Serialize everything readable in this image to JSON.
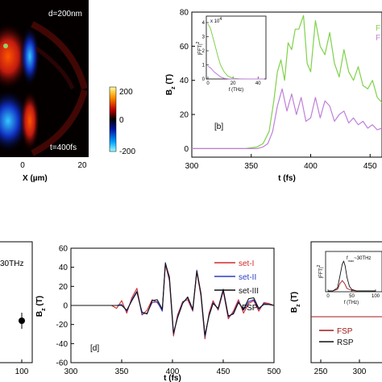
{
  "colors": {
    "green": "#7fd24a",
    "violet": "#bf7fd9",
    "red": "#d42a2a",
    "blue": "#2b3fc4",
    "black": "#111111",
    "darkred": "#a01818"
  },
  "chart_data": [
    {
      "id": "a",
      "type": "heatmap",
      "annotation_top": "d=200nm",
      "annotation_bottom": "t=400fs",
      "xlabel": "X (µm)",
      "xticks": [
        "0",
        "20"
      ],
      "colorbar": {
        "ticks": [
          "200",
          "0",
          "-200"
        ],
        "range": [
          -200,
          200
        ]
      }
    },
    {
      "id": "b",
      "type": "line",
      "ylabel": "B",
      "ylabel_sub": "z",
      "ylabel_unit": " (T)",
      "xlabel": "t (fs)",
      "xlim": [
        300,
        460
      ],
      "ylim": [
        -5,
        80
      ],
      "xticks": [
        300,
        350,
        400,
        450
      ],
      "yticks": [
        0,
        20,
        40,
        60,
        80
      ],
      "panel_label": "[b]",
      "legend_partial": [
        "F",
        "F"
      ],
      "series": [
        {
          "color_key": "green",
          "x": [
            300,
            330,
            345,
            350,
            355,
            360,
            365,
            369,
            372,
            375,
            378,
            381,
            384,
            387,
            390,
            394,
            397,
            400,
            404,
            408,
            412,
            416,
            420,
            424,
            428,
            432,
            436,
            440,
            444,
            448,
            452,
            456,
            460
          ],
          "y": [
            0,
            0,
            0,
            0.5,
            1,
            3,
            10,
            28,
            45,
            52,
            40,
            62,
            58,
            70,
            70,
            78,
            50,
            45,
            75,
            60,
            55,
            68,
            50,
            42,
            58,
            45,
            40,
            48,
            37,
            35,
            40,
            30,
            27
          ]
        },
        {
          "color_key": "violet",
          "x": [
            300,
            340,
            350,
            355,
            360,
            364,
            368,
            372,
            376,
            380,
            384,
            388,
            392,
            396,
            400,
            404,
            408,
            412,
            416,
            420,
            424,
            428,
            432,
            436,
            440,
            444,
            448,
            452,
            456,
            460
          ],
          "y": [
            0,
            0,
            0,
            0,
            1,
            3,
            10,
            25,
            35,
            22,
            32,
            20,
            30,
            16,
            18,
            30,
            18,
            28,
            25,
            16,
            20,
            22,
            15,
            18,
            14,
            16,
            12,
            14,
            11,
            12
          ]
        }
      ],
      "inset": {
        "ylabel": "|FFT|",
        "ylabel_sup": "2",
        "xlabel": "f (THz)",
        "xlim": [
          0,
          45
        ],
        "ylim": [
          0,
          4
        ],
        "xticks": [
          0,
          20,
          40
        ],
        "yticks": [
          0,
          1,
          2,
          3,
          4
        ],
        "scale_label": "x 10",
        "scale_exp": "4",
        "series": [
          {
            "color_key": "green",
            "x": [
              0,
              2,
              5,
              8,
              10,
              13,
              16,
              20,
              25,
              30,
              45
            ],
            "y": [
              3.9,
              3.6,
              2.6,
              1.6,
              1.0,
              0.5,
              0.2,
              0.05,
              0.02,
              0,
              0
            ]
          },
          {
            "color_key": "violet",
            "x": [
              0,
              2,
              5,
              8,
              10,
              13,
              16,
              20,
              25,
              45
            ],
            "y": [
              0.9,
              0.8,
              0.5,
              0.3,
              0.15,
              0.05,
              0.02,
              0,
              0,
              0
            ]
          }
        ]
      }
    },
    {
      "id": "c",
      "type": "scatter",
      "annotation": "30THz",
      "xticks": [
        "100"
      ],
      "points": [
        {
          "x": 100,
          "y": -20
        }
      ]
    },
    {
      "id": "d",
      "type": "line",
      "ylabel": "B",
      "ylabel_sub": "z",
      "ylabel_unit": " (T)",
      "xlabel": "t (fs)",
      "xlim": [
        300,
        500
      ],
      "ylim": [
        -60,
        60
      ],
      "xticks": [
        300,
        350,
        400,
        450,
        500
      ],
      "yticks": [
        -60,
        -40,
        -20,
        0,
        20,
        40,
        60
      ],
      "panel_label": "[d]",
      "annotation": "FSP",
      "legend": [
        "set-I",
        "set-II",
        "set-III"
      ],
      "series": [
        {
          "name": "set-I",
          "color_key": "red",
          "x": [
            300,
            330,
            340,
            345,
            350,
            355,
            360,
            365,
            370,
            375,
            380,
            385,
            390,
            393,
            397,
            401,
            405,
            410,
            415,
            420,
            424,
            428,
            432,
            436,
            440,
            445,
            450,
            455,
            460,
            465,
            470,
            475,
            480,
            485,
            490,
            495,
            500
          ],
          "y": [
            0,
            0,
            0,
            -3,
            5,
            -8,
            8,
            18,
            -10,
            -5,
            6,
            3,
            -5,
            43,
            26,
            -32,
            -10,
            4,
            6,
            -6,
            35,
            10,
            -35,
            -8,
            5,
            -5,
            15,
            -14,
            -6,
            6,
            -8,
            2,
            5,
            -6,
            3,
            2,
            0
          ]
        },
        {
          "name": "set-II",
          "color_key": "blue",
          "x": [
            300,
            330,
            340,
            345,
            350,
            355,
            360,
            365,
            370,
            375,
            380,
            385,
            390,
            393,
            397,
            401,
            405,
            410,
            415,
            420,
            424,
            428,
            432,
            436,
            440,
            445,
            450,
            455,
            460,
            465,
            470,
            475,
            480,
            485,
            490,
            495,
            500
          ],
          "y": [
            0,
            0,
            0,
            0,
            1,
            -6,
            6,
            15,
            -9,
            -8,
            3,
            4,
            -6,
            45,
            28,
            -30,
            -12,
            3,
            8,
            -5,
            37,
            12,
            -33,
            -10,
            3,
            -4,
            16,
            -12,
            -8,
            4,
            -5,
            4,
            6,
            -4,
            2,
            1,
            0
          ]
        },
        {
          "name": "set-III",
          "color_key": "black",
          "x": [
            300,
            330,
            340,
            345,
            350,
            355,
            360,
            365,
            370,
            375,
            380,
            385,
            390,
            393,
            397,
            401,
            405,
            410,
            415,
            420,
            424,
            428,
            432,
            436,
            440,
            445,
            450,
            455,
            460,
            465,
            470,
            475,
            480,
            485,
            490,
            495,
            500
          ],
          "y": [
            0,
            0,
            0,
            0,
            0,
            -5,
            5,
            14,
            -7,
            -9,
            5,
            6,
            -4,
            44,
            30,
            -29,
            -13,
            2,
            9,
            -4,
            36,
            13,
            -31,
            -11,
            2,
            -3,
            17,
            -11,
            -9,
            3,
            -4,
            7,
            8,
            -3,
            1,
            1,
            0
          ]
        }
      ]
    },
    {
      "id": "e",
      "type": "line",
      "ylabel": "B",
      "ylabel_sub": "z",
      "ylabel_unit": " (T)",
      "xticks": [
        250,
        300
      ],
      "legend": [
        "FSP",
        "RSP"
      ],
      "inset": {
        "ylabel": "|FFT|",
        "ylabel_sup": "2",
        "xlabel": "f (THz)",
        "xticks": [
          0,
          50,
          100
        ],
        "annotation": "f",
        "annotation_sub": "max",
        "annotation_tail": "~30THz",
        "series": [
          {
            "color_key": "darkred",
            "x": [
              0,
              10,
              20,
              25,
              30,
              35,
              40,
              50,
              60,
              100
            ],
            "y": [
              0,
              0,
              0.05,
              0.25,
              0.35,
              0.25,
              0.08,
              0.02,
              0,
              0
            ]
          },
          {
            "color_key": "black",
            "x": [
              0,
              10,
              20,
              25,
              30,
              33,
              36,
              40,
              45,
              50,
              60,
              100
            ],
            "y": [
              0,
              0,
              0.1,
              0.5,
              0.9,
              1.0,
              0.85,
              0.45,
              0.15,
              0.05,
              0,
              0
            ]
          }
        ]
      }
    }
  ]
}
